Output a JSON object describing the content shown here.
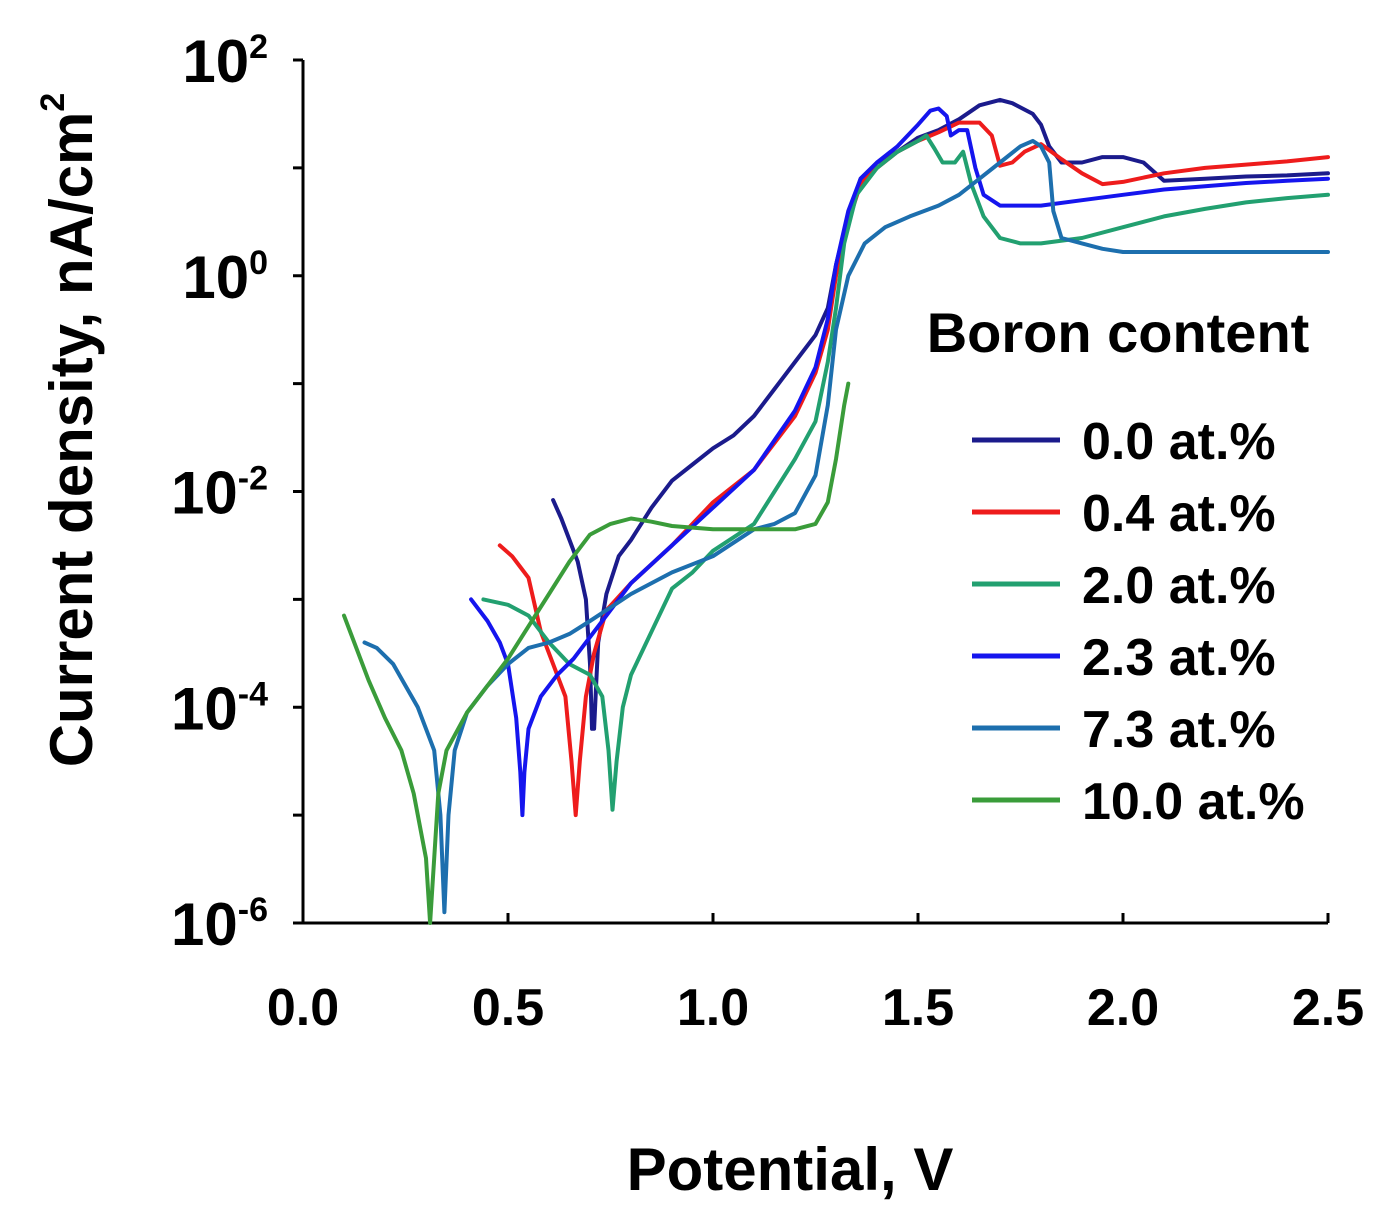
{
  "chart_data": {
    "type": "line",
    "xlabel": "Potential, V",
    "ylabel": {
      "prefix": "Current density, nA/cm",
      "sup": "2"
    },
    "xscale": "linear",
    "yscale": "log",
    "xlim": [
      0.0,
      2.5
    ],
    "ylim_log10": [
      -6,
      2
    ],
    "xticks": [
      {
        "v": 0.0,
        "label": "0.0"
      },
      {
        "v": 0.5,
        "label": "0.5"
      },
      {
        "v": 1.0,
        "label": "1.0"
      },
      {
        "v": 1.5,
        "label": "1.5"
      },
      {
        "v": 2.0,
        "label": "2.0"
      },
      {
        "v": 2.5,
        "label": "2.5"
      }
    ],
    "yticks": [
      {
        "v": -6,
        "base": "10",
        "exp": "-6"
      },
      {
        "v": -4,
        "base": "10",
        "exp": "-4"
      },
      {
        "v": -2,
        "base": "10",
        "exp": "-2"
      },
      {
        "v": 0,
        "base": "10",
        "exp": "0"
      },
      {
        "v": 2,
        "base": "10",
        "exp": "2"
      }
    ],
    "minor_yticks": [
      -5,
      -3,
      -1,
      1
    ],
    "legend": {
      "title": "Boron content",
      "position": "right"
    },
    "series": [
      {
        "name": "0.0 at.%",
        "color": "#1b1b8c",
        "points": [
          [
            0.61,
            -2.08
          ],
          [
            0.63,
            -2.25
          ],
          [
            0.65,
            -2.45
          ],
          [
            0.67,
            -2.65
          ],
          [
            0.69,
            -3.0
          ],
          [
            0.7,
            -3.6
          ],
          [
            0.705,
            -4.2
          ],
          [
            0.71,
            -4.2
          ],
          [
            0.715,
            -3.8
          ],
          [
            0.72,
            -3.4
          ],
          [
            0.74,
            -2.95
          ],
          [
            0.77,
            -2.6
          ],
          [
            0.8,
            -2.45
          ],
          [
            0.85,
            -2.15
          ],
          [
            0.9,
            -1.9
          ],
          [
            0.95,
            -1.75
          ],
          [
            1.0,
            -1.6
          ],
          [
            1.05,
            -1.48
          ],
          [
            1.1,
            -1.3
          ],
          [
            1.15,
            -1.05
          ],
          [
            1.2,
            -0.8
          ],
          [
            1.25,
            -0.55
          ],
          [
            1.28,
            -0.3
          ],
          [
            1.3,
            0.1
          ],
          [
            1.33,
            0.55
          ],
          [
            1.36,
            0.9
          ],
          [
            1.4,
            1.05
          ],
          [
            1.45,
            1.15
          ],
          [
            1.5,
            1.28
          ],
          [
            1.55,
            1.35
          ],
          [
            1.6,
            1.45
          ],
          [
            1.65,
            1.58
          ],
          [
            1.7,
            1.63
          ],
          [
            1.73,
            1.6
          ],
          [
            1.78,
            1.5
          ],
          [
            1.8,
            1.4
          ],
          [
            1.82,
            1.2
          ],
          [
            1.85,
            1.05
          ],
          [
            1.9,
            1.05
          ],
          [
            1.95,
            1.1
          ],
          [
            2.0,
            1.1
          ],
          [
            2.05,
            1.05
          ],
          [
            2.1,
            0.88
          ],
          [
            2.2,
            0.9
          ],
          [
            2.3,
            0.92
          ],
          [
            2.4,
            0.93
          ],
          [
            2.5,
            0.95
          ]
        ]
      },
      {
        "name": "0.4 at.%",
        "color": "#ee1c1c",
        "points": [
          [
            0.48,
            -2.5
          ],
          [
            0.51,
            -2.6
          ],
          [
            0.53,
            -2.7
          ],
          [
            0.55,
            -2.8
          ],
          [
            0.58,
            -3.3
          ],
          [
            0.61,
            -3.6
          ],
          [
            0.64,
            -3.9
          ],
          [
            0.655,
            -4.5
          ],
          [
            0.665,
            -5.0
          ],
          [
            0.675,
            -4.5
          ],
          [
            0.69,
            -3.9
          ],
          [
            0.71,
            -3.5
          ],
          [
            0.74,
            -3.1
          ],
          [
            0.8,
            -2.85
          ],
          [
            0.9,
            -2.5
          ],
          [
            1.0,
            -2.1
          ],
          [
            1.1,
            -1.8
          ],
          [
            1.2,
            -1.3
          ],
          [
            1.25,
            -0.9
          ],
          [
            1.28,
            -0.5
          ],
          [
            1.3,
            0.0
          ],
          [
            1.33,
            0.5
          ],
          [
            1.36,
            0.85
          ],
          [
            1.4,
            1.0
          ],
          [
            1.45,
            1.15
          ],
          [
            1.5,
            1.25
          ],
          [
            1.55,
            1.33
          ],
          [
            1.6,
            1.42
          ],
          [
            1.65,
            1.42
          ],
          [
            1.68,
            1.3
          ],
          [
            1.7,
            1.02
          ],
          [
            1.73,
            1.05
          ],
          [
            1.76,
            1.15
          ],
          [
            1.8,
            1.22
          ],
          [
            1.85,
            1.08
          ],
          [
            1.9,
            0.95
          ],
          [
            1.95,
            0.85
          ],
          [
            2.0,
            0.87
          ],
          [
            2.1,
            0.95
          ],
          [
            2.2,
            1.0
          ],
          [
            2.3,
            1.03
          ],
          [
            2.4,
            1.06
          ],
          [
            2.5,
            1.1
          ]
        ]
      },
      {
        "name": "2.0 at.%",
        "color": "#22a070",
        "points": [
          [
            0.44,
            -3.0
          ],
          [
            0.5,
            -3.05
          ],
          [
            0.55,
            -3.15
          ],
          [
            0.6,
            -3.4
          ],
          [
            0.65,
            -3.6
          ],
          [
            0.7,
            -3.7
          ],
          [
            0.73,
            -3.9
          ],
          [
            0.745,
            -4.4
          ],
          [
            0.755,
            -4.95
          ],
          [
            0.765,
            -4.5
          ],
          [
            0.78,
            -4.0
          ],
          [
            0.8,
            -3.7
          ],
          [
            0.85,
            -3.3
          ],
          [
            0.9,
            -2.9
          ],
          [
            0.95,
            -2.75
          ],
          [
            1.0,
            -2.55
          ],
          [
            1.1,
            -2.3
          ],
          [
            1.15,
            -2.0
          ],
          [
            1.2,
            -1.7
          ],
          [
            1.25,
            -1.35
          ],
          [
            1.28,
            -0.8
          ],
          [
            1.3,
            -0.3
          ],
          [
            1.32,
            0.3
          ],
          [
            1.35,
            0.75
          ],
          [
            1.4,
            1.0
          ],
          [
            1.45,
            1.15
          ],
          [
            1.5,
            1.25
          ],
          [
            1.52,
            1.3
          ],
          [
            1.54,
            1.18
          ],
          [
            1.56,
            1.05
          ],
          [
            1.59,
            1.05
          ],
          [
            1.61,
            1.15
          ],
          [
            1.63,
            0.85
          ],
          [
            1.66,
            0.55
          ],
          [
            1.7,
            0.35
          ],
          [
            1.75,
            0.3
          ],
          [
            1.8,
            0.3
          ],
          [
            1.9,
            0.35
          ],
          [
            2.0,
            0.45
          ],
          [
            2.1,
            0.55
          ],
          [
            2.2,
            0.62
          ],
          [
            2.3,
            0.68
          ],
          [
            2.4,
            0.72
          ],
          [
            2.5,
            0.75
          ]
        ]
      },
      {
        "name": "2.3 at.%",
        "color": "#1515ee",
        "points": [
          [
            0.41,
            -3.0
          ],
          [
            0.45,
            -3.2
          ],
          [
            0.48,
            -3.4
          ],
          [
            0.5,
            -3.6
          ],
          [
            0.52,
            -4.1
          ],
          [
            0.53,
            -4.6
          ],
          [
            0.535,
            -5.0
          ],
          [
            0.54,
            -4.6
          ],
          [
            0.55,
            -4.2
          ],
          [
            0.58,
            -3.9
          ],
          [
            0.62,
            -3.7
          ],
          [
            0.66,
            -3.55
          ],
          [
            0.7,
            -3.35
          ],
          [
            0.75,
            -3.1
          ],
          [
            0.8,
            -2.85
          ],
          [
            0.9,
            -2.5
          ],
          [
            1.0,
            -2.15
          ],
          [
            1.1,
            -1.8
          ],
          [
            1.2,
            -1.25
          ],
          [
            1.25,
            -0.85
          ],
          [
            1.28,
            -0.4
          ],
          [
            1.3,
            0.1
          ],
          [
            1.33,
            0.6
          ],
          [
            1.36,
            0.9
          ],
          [
            1.4,
            1.05
          ],
          [
            1.45,
            1.2
          ],
          [
            1.5,
            1.4
          ],
          [
            1.53,
            1.53
          ],
          [
            1.55,
            1.55
          ],
          [
            1.57,
            1.48
          ],
          [
            1.58,
            1.3
          ],
          [
            1.6,
            1.35
          ],
          [
            1.62,
            1.35
          ],
          [
            1.64,
            1.0
          ],
          [
            1.66,
            0.75
          ],
          [
            1.7,
            0.65
          ],
          [
            1.8,
            0.65
          ],
          [
            1.9,
            0.7
          ],
          [
            2.0,
            0.75
          ],
          [
            2.1,
            0.8
          ],
          [
            2.2,
            0.83
          ],
          [
            2.3,
            0.86
          ],
          [
            2.4,
            0.88
          ],
          [
            2.5,
            0.9
          ]
        ]
      },
      {
        "name": "7.3 at.%",
        "color": "#1d6fae",
        "points": [
          [
            0.15,
            -3.4
          ],
          [
            0.18,
            -3.45
          ],
          [
            0.22,
            -3.6
          ],
          [
            0.25,
            -3.8
          ],
          [
            0.28,
            -4.0
          ],
          [
            0.3,
            -4.2
          ],
          [
            0.32,
            -4.4
          ],
          [
            0.335,
            -5.0
          ],
          [
            0.345,
            -5.9
          ],
          [
            0.355,
            -5.0
          ],
          [
            0.37,
            -4.4
          ],
          [
            0.4,
            -4.05
          ],
          [
            0.45,
            -3.8
          ],
          [
            0.5,
            -3.6
          ],
          [
            0.55,
            -3.45
          ],
          [
            0.6,
            -3.4
          ],
          [
            0.65,
            -3.32
          ],
          [
            0.7,
            -3.2
          ],
          [
            0.8,
            -2.95
          ],
          [
            0.9,
            -2.75
          ],
          [
            1.0,
            -2.6
          ],
          [
            1.1,
            -2.35
          ],
          [
            1.15,
            -2.3
          ],
          [
            1.2,
            -2.2
          ],
          [
            1.25,
            -1.85
          ],
          [
            1.28,
            -1.2
          ],
          [
            1.3,
            -0.5
          ],
          [
            1.33,
            0.0
          ],
          [
            1.37,
            0.3
          ],
          [
            1.42,
            0.45
          ],
          [
            1.48,
            0.55
          ],
          [
            1.55,
            0.65
          ],
          [
            1.6,
            0.75
          ],
          [
            1.65,
            0.9
          ],
          [
            1.7,
            1.05
          ],
          [
            1.75,
            1.2
          ],
          [
            1.78,
            1.25
          ],
          [
            1.8,
            1.2
          ],
          [
            1.82,
            1.05
          ],
          [
            1.83,
            0.6
          ],
          [
            1.85,
            0.35
          ],
          [
            1.9,
            0.3
          ],
          [
            1.95,
            0.25
          ],
          [
            2.0,
            0.22
          ],
          [
            2.1,
            0.22
          ],
          [
            2.3,
            0.22
          ],
          [
            2.5,
            0.22
          ]
        ]
      },
      {
        "name": "10.0 at.%",
        "color": "#3a9c3a",
        "points": [
          [
            0.1,
            -3.15
          ],
          [
            0.13,
            -3.45
          ],
          [
            0.16,
            -3.75
          ],
          [
            0.2,
            -4.1
          ],
          [
            0.24,
            -4.4
          ],
          [
            0.27,
            -4.8
          ],
          [
            0.3,
            -5.4
          ],
          [
            0.31,
            -6.0
          ],
          [
            0.32,
            -5.4
          ],
          [
            0.33,
            -4.8
          ],
          [
            0.35,
            -4.4
          ],
          [
            0.4,
            -4.05
          ],
          [
            0.45,
            -3.8
          ],
          [
            0.5,
            -3.55
          ],
          [
            0.55,
            -3.25
          ],
          [
            0.6,
            -2.95
          ],
          [
            0.65,
            -2.65
          ],
          [
            0.7,
            -2.4
          ],
          [
            0.75,
            -2.3
          ],
          [
            0.8,
            -2.25
          ],
          [
            0.85,
            -2.28
          ],
          [
            0.9,
            -2.32
          ],
          [
            1.0,
            -2.35
          ],
          [
            1.1,
            -2.35
          ],
          [
            1.2,
            -2.35
          ],
          [
            1.25,
            -2.3
          ],
          [
            1.28,
            -2.1
          ],
          [
            1.3,
            -1.7
          ],
          [
            1.32,
            -1.2
          ],
          [
            1.33,
            -1.0
          ]
        ]
      }
    ]
  }
}
